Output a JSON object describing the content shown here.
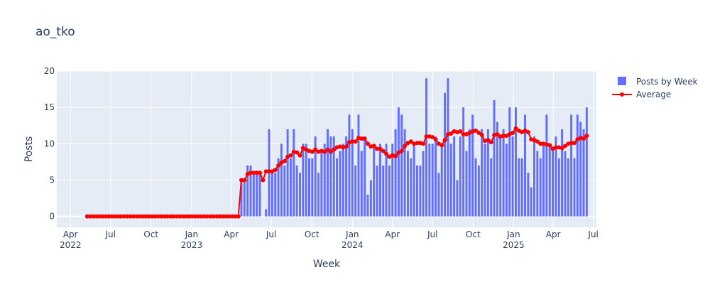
{
  "chart_data": {
    "type": "bar+line",
    "title": "ao_tko",
    "xlabel": "Week",
    "ylabel": "Posts",
    "x_range": [
      "2022-03-01",
      "2025-07-08"
    ],
    "ylim": [
      -1.5,
      20
    ],
    "y_ticks": [
      0,
      5,
      10,
      15,
      20
    ],
    "x_ticks": [
      {
        "date": "2022-04-01",
        "label": "Apr",
        "year": "2022"
      },
      {
        "date": "2022-07-01",
        "label": "Jul",
        "year": ""
      },
      {
        "date": "2022-10-01",
        "label": "Oct",
        "year": ""
      },
      {
        "date": "2023-01-01",
        "label": "Jan",
        "year": "2023"
      },
      {
        "date": "2023-04-01",
        "label": "Apr",
        "year": ""
      },
      {
        "date": "2023-07-01",
        "label": "Jul",
        "year": ""
      },
      {
        "date": "2023-10-01",
        "label": "Oct",
        "year": ""
      },
      {
        "date": "2024-01-01",
        "label": "Jan",
        "year": "2024"
      },
      {
        "date": "2024-04-01",
        "label": "Apr",
        "year": ""
      },
      {
        "date": "2024-07-01",
        "label": "Jul",
        "year": ""
      },
      {
        "date": "2024-10-01",
        "label": "Oct",
        "year": ""
      },
      {
        "date": "2025-01-01",
        "label": "Jan",
        "year": "2025"
      },
      {
        "date": "2025-04-01",
        "label": "Apr",
        "year": ""
      },
      {
        "date": "2025-07-01",
        "label": "Jul",
        "year": ""
      }
    ],
    "grid": true,
    "legend_position": "top-right",
    "legend": [
      "Posts by Week",
      "Average"
    ],
    "start_week": "2022-05-09",
    "week_count": 159,
    "series": [
      {
        "name": "Posts by Week",
        "kind": "bar",
        "color": "#636efa",
        "values": [
          0,
          0,
          0,
          0,
          0,
          0,
          0,
          0,
          0,
          0,
          0,
          0,
          0,
          0,
          0,
          0,
          0,
          0,
          0,
          0,
          0,
          0,
          0,
          0,
          0,
          0,
          0,
          0,
          0,
          0,
          0,
          0,
          0,
          0,
          0,
          0,
          0,
          0,
          0,
          0,
          0,
          0,
          0,
          0,
          0,
          0,
          0,
          0,
          0,
          0,
          5,
          5,
          7,
          7,
          6,
          6,
          6,
          0,
          1,
          12,
          6,
          6,
          8,
          10,
          7,
          12,
          8,
          12,
          7,
          6,
          10,
          10,
          8,
          8,
          11,
          6,
          9,
          10,
          12,
          11,
          11,
          8,
          9,
          10,
          11,
          14,
          12,
          7,
          14,
          9,
          11,
          3,
          5,
          10,
          7,
          10,
          7,
          10,
          7,
          10,
          12,
          15,
          14,
          12,
          9,
          8,
          10,
          7,
          7,
          9,
          19,
          10,
          10,
          11,
          6,
          10,
          17,
          19,
          10,
          11,
          5,
          11,
          15,
          9,
          12,
          14,
          8,
          7,
          12,
          10,
          12,
          8,
          16,
          13,
          11,
          12,
          10,
          15,
          11,
          15,
          8,
          8,
          14,
          6,
          4,
          11,
          9,
          8,
          10,
          14,
          10,
          9,
          11,
          8,
          12,
          9,
          8,
          14,
          8,
          14,
          13,
          12,
          15
        ]
      },
      {
        "name": "Average",
        "kind": "line",
        "color": "#ff0000",
        "values": [
          0,
          0,
          0,
          0,
          0,
          0,
          0,
          0,
          0,
          0,
          0,
          0,
          0,
          0,
          0,
          0,
          0,
          0,
          0,
          0,
          0,
          0,
          0,
          0,
          0,
          0,
          0,
          0,
          0,
          0,
          0,
          0,
          0,
          0,
          0,
          0,
          0,
          0,
          0,
          0,
          0,
          0,
          0,
          0,
          0,
          0,
          0,
          0,
          0,
          0,
          5,
          5,
          5.8,
          6,
          6,
          6,
          6,
          5,
          6.2,
          6.2,
          6.2,
          6.4,
          7,
          7.4,
          7.6,
          8.2,
          8.4,
          8.9,
          8.8,
          8.4,
          9.4,
          9.2,
          9,
          8.9,
          9.2,
          8.9,
          9,
          8.9,
          9.2,
          8.9,
          9.2,
          9.5,
          9.6,
          9.5,
          9.6,
          10.2,
          10.3,
          10.3,
          10.8,
          10.7,
          10.7,
          10,
          9.6,
          9.7,
          9.3,
          9.3,
          9,
          8.6,
          8.2,
          8.4,
          8.3,
          8.8,
          9,
          9.7,
          10.1,
          10.3,
          10,
          10.1,
          10.1,
          10,
          11,
          11,
          10.9,
          10.6,
          10,
          9.8,
          10.5,
          11.3,
          11.4,
          11.7,
          11.6,
          11.7,
          11.3,
          11.3,
          11.5,
          11.7,
          11.8,
          11.5,
          11.2,
          10.4,
          10.5,
          10.2,
          11.2,
          11.3,
          11,
          11.1,
          11.1,
          11.3,
          11.5,
          12.1,
          11.8,
          11.6,
          11.8,
          11.6,
          10.6,
          10.5,
          10.3,
          10,
          10,
          9.9,
          9.8,
          9.3,
          9.5,
          9.5,
          9.4,
          9.7,
          10,
          10.1,
          10.1,
          10.6,
          10.8,
          10.7,
          11.1
        ]
      }
    ]
  }
}
